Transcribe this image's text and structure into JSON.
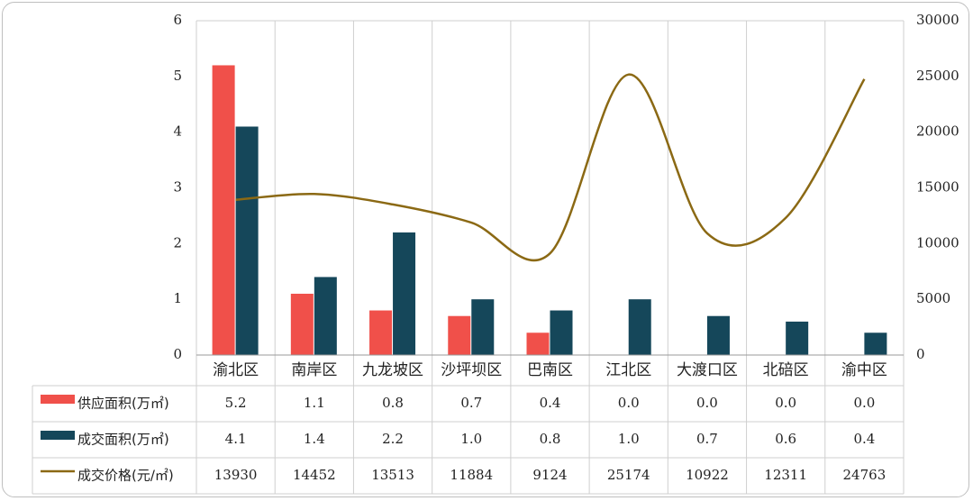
{
  "chart_data": {
    "type": "bar",
    "title": "",
    "categories": [
      "渝北区",
      "南岸区",
      "九龙坡区",
      "沙坪坝区",
      "巴南区",
      "江北区",
      "大渡口区",
      "北碚区",
      "渝中区"
    ],
    "series": [
      {
        "name": "供应面积(万㎡)",
        "type": "bar",
        "axis": "left",
        "color": "#f0504a",
        "values": [
          5.2,
          1.1,
          0.8,
          0.7,
          0.4,
          0.0,
          0.0,
          0.0,
          0.0
        ],
        "labels": [
          "5.2",
          "1.1",
          "0.8",
          "0.7",
          "0.4",
          "0.0",
          "0.0",
          "0.0",
          "0.0"
        ]
      },
      {
        "name": "成交面积(万㎡)",
        "type": "bar",
        "axis": "left",
        "color": "#15475a",
        "values": [
          4.1,
          1.4,
          2.2,
          1.0,
          0.8,
          1.0,
          0.7,
          0.6,
          0.4
        ],
        "labels": [
          "4.1",
          "1.4",
          "2.2",
          "1.0",
          "0.8",
          "1.0",
          "0.7",
          "0.6",
          "0.4"
        ]
      },
      {
        "name": "成交价格(元/㎡)",
        "type": "line",
        "axis": "right",
        "color": "#8b6914",
        "values": [
          13930,
          14452,
          13513,
          11884,
          9124,
          25174,
          10922,
          12311,
          24763
        ],
        "labels": [
          "13930",
          "14452",
          "13513",
          "11884",
          "9124",
          "25174",
          "10922",
          "12311",
          "24763"
        ]
      }
    ],
    "y_left": {
      "min": 0,
      "max": 6,
      "ticks": [
        "0",
        "1",
        "2",
        "3",
        "4",
        "5",
        "6"
      ]
    },
    "y_right": {
      "min": 0,
      "max": 30000,
      "ticks": [
        "0",
        "5000",
        "10000",
        "15000",
        "20000",
        "25000",
        "30000"
      ]
    },
    "grid": true,
    "legend": "data-table"
  }
}
